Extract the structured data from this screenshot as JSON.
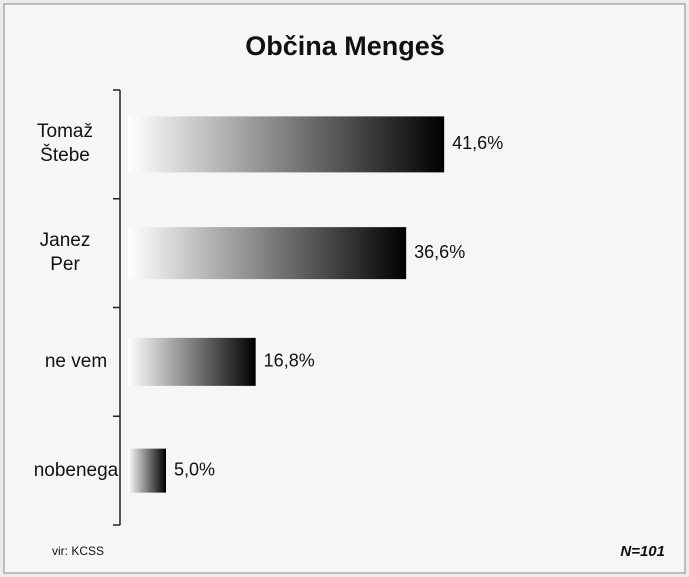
{
  "chart_data": {
    "type": "bar",
    "orientation": "horizontal",
    "title": "Občina Mengeš",
    "categories": [
      "Tomaž Štebe",
      "Janez Per",
      "ne vem",
      "nobenega"
    ],
    "values": [
      41.6,
      36.6,
      16.8,
      5.0
    ],
    "value_labels": [
      "41,6%",
      "36,6%",
      "16,8%",
      "5,0%"
    ],
    "color": "#000000",
    "source": "vir: KCSS",
    "note": "N=101"
  }
}
